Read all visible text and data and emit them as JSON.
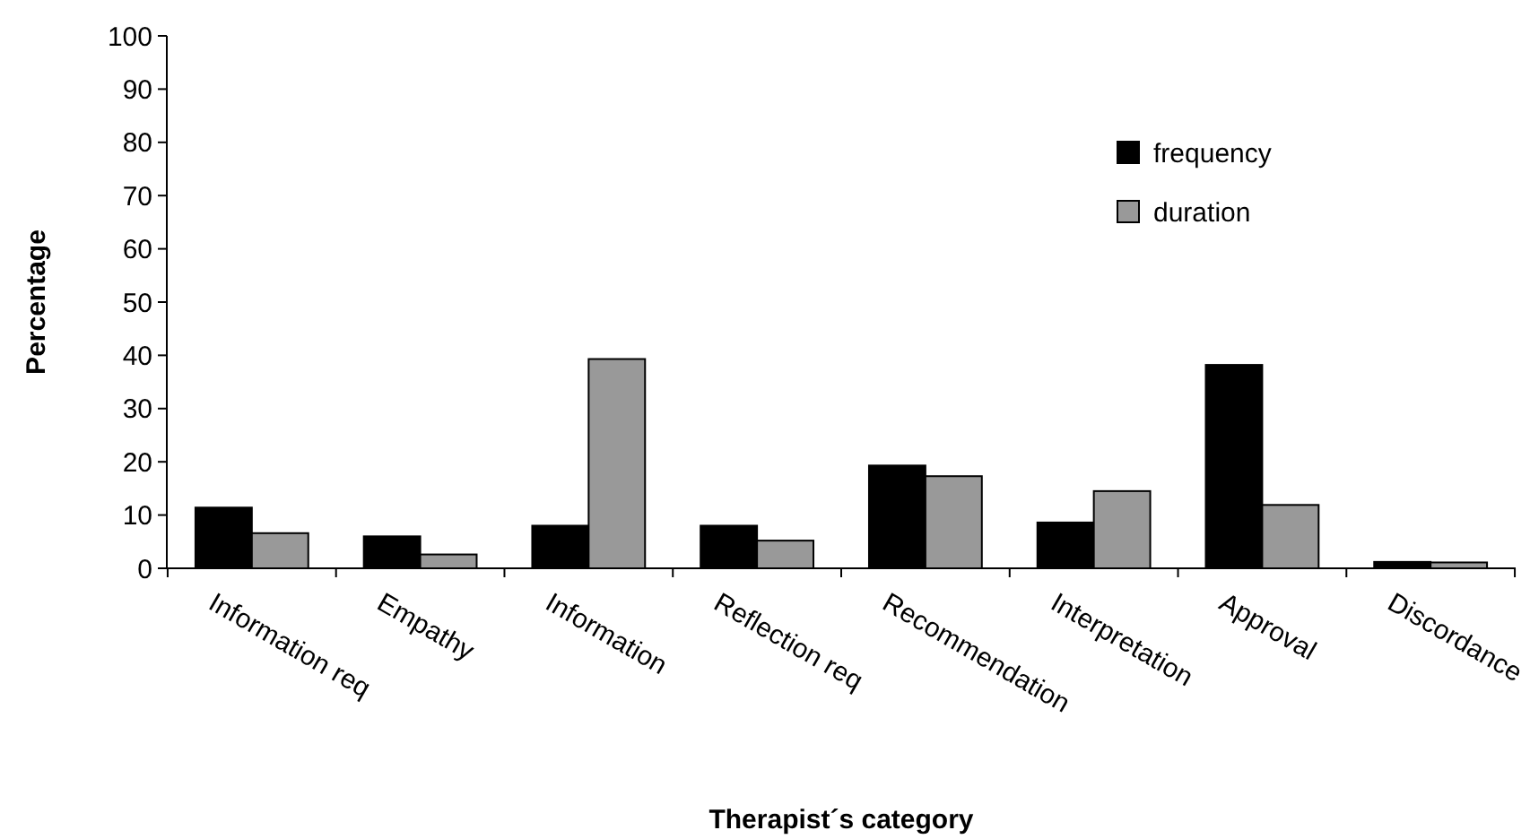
{
  "chart_data": {
    "type": "bar",
    "xlabel": "Therapist´s category",
    "ylabel": "Percentage",
    "categories": [
      "Information req",
      "Empathy",
      "Information",
      "Reflection req",
      "Recommendation",
      "Interpretation",
      "Approval",
      "Discordance"
    ],
    "series": [
      {
        "name": "frequency",
        "color": "#000000",
        "values": [
          11.4,
          6,
          8,
          8,
          19.3,
          8.6,
          38.2,
          1.2
        ]
      },
      {
        "name": "duration",
        "color": "#999999",
        "values": [
          6.6,
          2.6,
          39.3,
          5.2,
          17.3,
          14.5,
          11.9,
          1.1
        ]
      }
    ],
    "ylim": [
      0,
      100
    ],
    "yticks": [
      0,
      10,
      20,
      30,
      40,
      50,
      60,
      70,
      80,
      90,
      100
    ],
    "grid": false,
    "legend": "top right"
  }
}
